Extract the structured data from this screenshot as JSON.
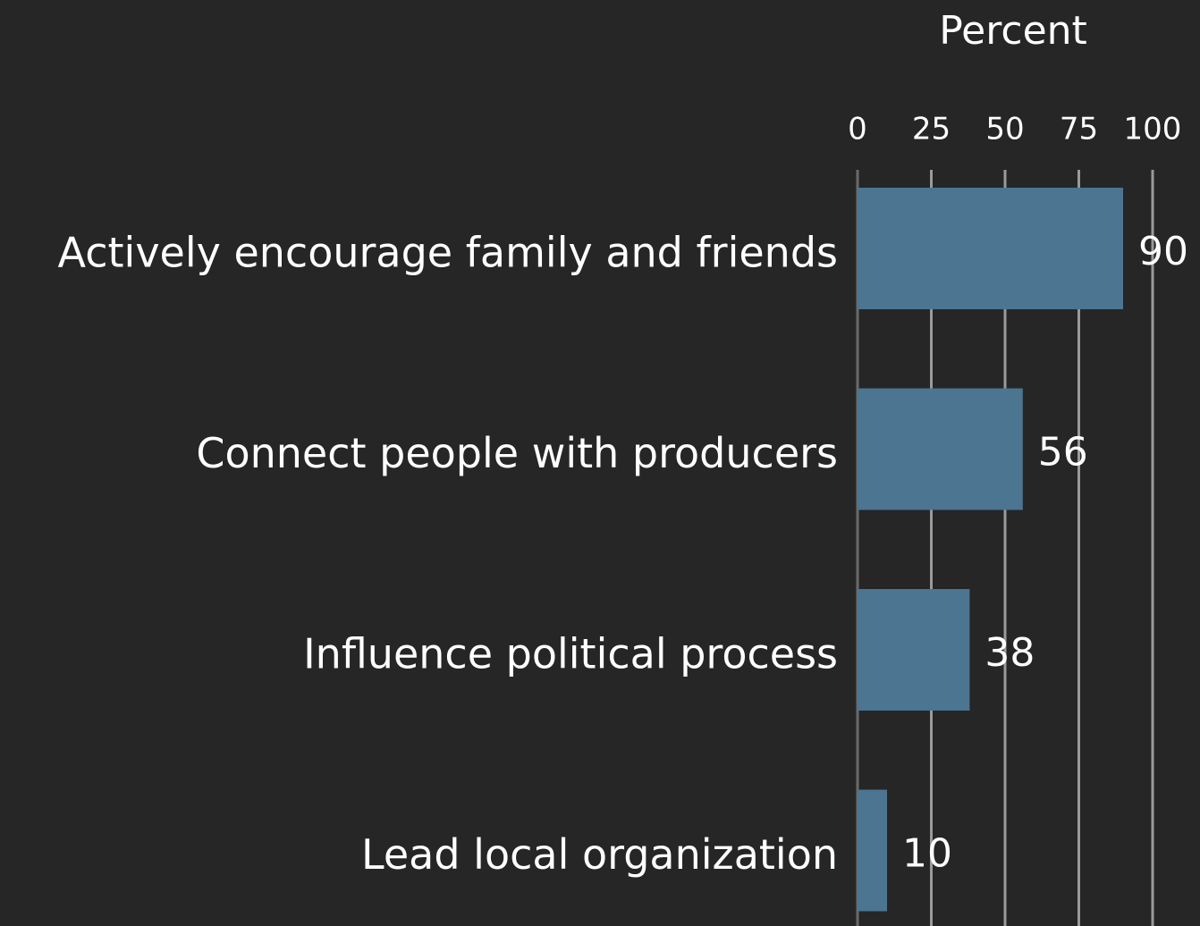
{
  "chart_data": {
    "type": "bar",
    "orientation": "horizontal",
    "x_label": "Percent",
    "categories": [
      "Actively encourage family and friends",
      "Connect people with producers",
      "Influence political process",
      "Lead local organization"
    ],
    "values": [
      90,
      56,
      38,
      10
    ],
    "color": "#4b7591",
    "xlim": [
      0,
      100
    ],
    "xticks": [
      0,
      25,
      50,
      75,
      100
    ],
    "grid": true
  }
}
